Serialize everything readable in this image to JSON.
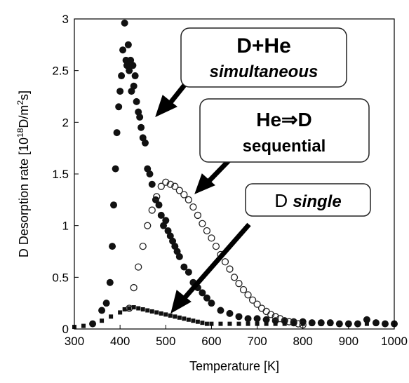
{
  "chart_data": {
    "type": "scatter",
    "xlabel": "Temperature [K]",
    "ylabel": "D Desorption rate [10",
    "ylabel_sup": "18",
    "ylabel_rest": "D/m",
    "ylabel_sup2": "2",
    "ylabel_end": "s]",
    "xlim": [
      300,
      1000
    ],
    "ylim": [
      0,
      3
    ],
    "xticks": [
      "300",
      "400",
      "500",
      "600",
      "700",
      "800",
      "900",
      "1000"
    ],
    "yticks": [
      "0",
      "0.5",
      "1",
      "1.5",
      "2",
      "2.5",
      "3"
    ],
    "grid": false,
    "series": [
      {
        "marker": "filled-circle",
        "x": [
          340,
          360,
          370,
          378,
          383,
          386,
          390,
          393,
          397,
          400,
          403,
          406,
          410,
          413,
          415,
          418,
          420,
          423,
          425,
          428,
          430,
          433,
          436,
          440,
          443,
          446,
          450,
          455,
          460,
          465,
          470,
          478,
          485,
          490,
          495,
          500,
          505,
          510,
          515,
          520,
          525,
          530,
          540,
          550,
          560,
          570,
          580,
          590,
          600,
          620,
          640,
          660,
          680,
          700,
          720,
          740,
          760,
          780,
          800,
          820,
          840,
          860,
          880,
          900,
          920,
          940,
          960,
          980,
          1000
        ],
        "y": [
          0.05,
          0.18,
          0.25,
          0.45,
          0.8,
          1.2,
          1.55,
          1.9,
          2.15,
          2.3,
          2.45,
          2.7,
          2.96,
          2.6,
          2.55,
          2.75,
          2.5,
          2.6,
          2.3,
          2.55,
          2.35,
          2.45,
          2.2,
          2.1,
          2.05,
          1.95,
          1.85,
          1.8,
          1.55,
          1.5,
          1.4,
          1.25,
          1.2,
          1.1,
          1.0,
          1.05,
          0.95,
          0.9,
          0.85,
          0.8,
          0.75,
          0.7,
          0.6,
          0.55,
          0.45,
          0.4,
          0.35,
          0.3,
          0.25,
          0.18,
          0.15,
          0.12,
          0.1,
          0.1,
          0.09,
          0.08,
          0.08,
          0.07,
          0.07,
          0.06,
          0.06,
          0.06,
          0.05,
          0.05,
          0.05,
          0.09,
          0.06,
          0.05,
          0.05
        ]
      },
      {
        "marker": "open-circle",
        "x": [
          420,
          430,
          440,
          450,
          460,
          470,
          480,
          490,
          500,
          510,
          520,
          530,
          540,
          550,
          560,
          570,
          580,
          590,
          600,
          610,
          620,
          630,
          640,
          650,
          660,
          670,
          680,
          690,
          700,
          710,
          720,
          730,
          740,
          750,
          760,
          770,
          780,
          790,
          800
        ],
        "y": [
          0.2,
          0.4,
          0.6,
          0.8,
          1.0,
          1.15,
          1.28,
          1.38,
          1.42,
          1.4,
          1.38,
          1.34,
          1.3,
          1.25,
          1.18,
          1.1,
          1.02,
          0.95,
          0.88,
          0.8,
          0.72,
          0.65,
          0.58,
          0.5,
          0.44,
          0.38,
          0.33,
          0.28,
          0.24,
          0.2,
          0.17,
          0.14,
          0.12,
          0.1,
          0.08,
          0.07,
          0.06,
          0.05,
          0.04
        ]
      },
      {
        "marker": "filled-square",
        "x": [
          300,
          320,
          340,
          360,
          380,
          400,
          410,
          420,
          430,
          440,
          450,
          460,
          470,
          480,
          490,
          500,
          510,
          520,
          530,
          540,
          550,
          560,
          570,
          580,
          590,
          600,
          620,
          640,
          660,
          680,
          700,
          720,
          740,
          760,
          780,
          800,
          820,
          840,
          860,
          880,
          900,
          920,
          940,
          960,
          980,
          1000
        ],
        "y": [
          0.02,
          0.03,
          0.05,
          0.08,
          0.12,
          0.16,
          0.19,
          0.2,
          0.21,
          0.2,
          0.19,
          0.18,
          0.17,
          0.16,
          0.15,
          0.14,
          0.13,
          0.12,
          0.11,
          0.1,
          0.09,
          0.08,
          0.07,
          0.06,
          0.05,
          0.05,
          0.05,
          0.05,
          0.05,
          0.05,
          0.05,
          0.05,
          0.05,
          0.05,
          0.05,
          0.05,
          0.05,
          0.05,
          0.05,
          0.05,
          0.05,
          0.05,
          0.05,
          0.05,
          0.05,
          0.05
        ]
      }
    ],
    "annotations": [
      {
        "line1": "D+He",
        "line2": "simultaneous"
      },
      {
        "line1": "He⇒D",
        "line2": "sequential"
      },
      {
        "line1": "D ",
        "line1_it": "single"
      }
    ]
  }
}
